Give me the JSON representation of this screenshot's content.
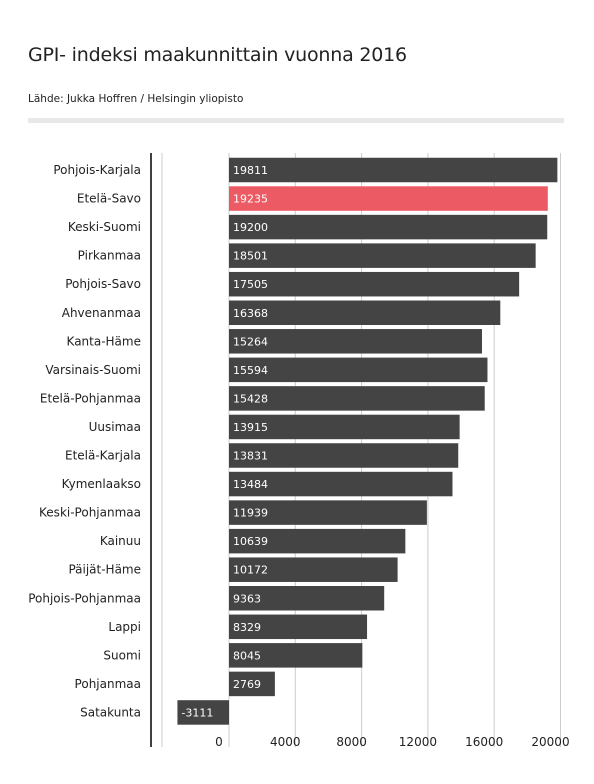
{
  "header": {
    "title": "GPI- indeksi maakunnittain vuonna 2016",
    "source": "Lähde: Jukka Hoffren / Helsingin yliopisto"
  },
  "colors": {
    "bar": "#444444",
    "highlight": "#ec5a63",
    "grid": "#cccccc",
    "axis": "#000000"
  },
  "chart_data": {
    "type": "bar",
    "orientation": "horizontal",
    "title": "GPI- indeksi maakunnittain vuonna 2016",
    "xlabel": "",
    "ylabel": "",
    "xlim": [
      -4700,
      20200
    ],
    "xticks": [
      0,
      4000,
      8000,
      12000,
      16000,
      20000
    ],
    "grid": true,
    "highlight_category": "Etelä-Savo",
    "categories": [
      "Pohjois-Karjala",
      "Etelä-Savo",
      "Keski-Suomi",
      "Pirkanmaa",
      "Pohjois-Savo",
      "Ahvenanmaa",
      "Kanta-Häme",
      "Varsinais-Suomi",
      "Etelä-Pohjanmaa",
      "Uusimaa",
      "Etelä-Karjala",
      "Kymenlaakso",
      "Keski-Pohjanmaa",
      "Kainuu",
      "Päijät-Häme",
      "Pohjois-Pohjanmaa",
      "Lappi",
      "Suomi",
      "Pohjanmaa",
      "Satakunta"
    ],
    "values": [
      19811,
      19235,
      19200,
      18501,
      17505,
      16368,
      15264,
      15594,
      15428,
      13915,
      13831,
      13484,
      11939,
      10639,
      10172,
      9363,
      8329,
      8045,
      2769,
      -3111
    ]
  }
}
